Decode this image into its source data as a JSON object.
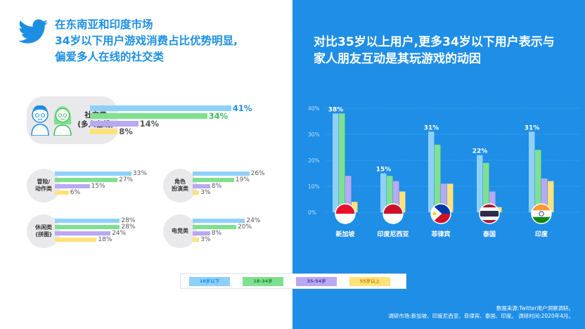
{
  "colors": {
    "age_18_under": "#8fd0f9",
    "age_18_34": "#7fe08f",
    "age_35_54": "#b9a9f2",
    "age_55_up": "#ffe27a",
    "twitter_blue": "#1d8fe3",
    "panel_blue": "#1e8ee6"
  },
  "header": {
    "logo_icon": "twitter-bird-icon",
    "title_line1": "在东南亚和印度市场",
    "title_line2": "34岁以下用户游戏消费占比优势明显,",
    "title_line3": "偏爱多人在线的社交类"
  },
  "right_panel": {
    "title_line1": "对比35岁以上用户,更多34岁以下用户表示与",
    "title_line2": "家人朋友互动是其玩游戏的动因"
  },
  "legend": {
    "items": [
      "18岁以下",
      "18-34岁",
      "35-54岁",
      "55岁以上"
    ]
  },
  "source": {
    "line1": "数据来源:Twitter用户洞察调研。",
    "line2": "调研市场:新加坡、印度尼西亚、菲律宾、泰国、印度。 调研时间:2020年4月。"
  },
  "chart_data": [
    {
      "type": "bar",
      "orientation": "horizontal",
      "category": "社交类(多人在线)",
      "label_line1": "社交类",
      "label_line2": "(多人在线)",
      "series": [
        {
          "name": "18岁以下",
          "value": 41,
          "label": "41%"
        },
        {
          "name": "18-34岁",
          "value": 34,
          "label": "34%"
        },
        {
          "name": "35-54岁",
          "value": 14,
          "label": "14%"
        },
        {
          "name": "55岁以上",
          "value": 8,
          "label": "8%"
        }
      ]
    },
    {
      "type": "bar",
      "orientation": "horizontal",
      "category": "冒险/动作类",
      "label_line1": "冒险/",
      "label_line2": "动作类",
      "series": [
        {
          "name": "18岁以下",
          "value": 33,
          "label": "33%"
        },
        {
          "name": "18-34岁",
          "value": 27,
          "label": "27%"
        },
        {
          "name": "35-54岁",
          "value": 15,
          "label": "15%"
        },
        {
          "name": "55岁以上",
          "value": 6,
          "label": "6%"
        }
      ]
    },
    {
      "type": "bar",
      "orientation": "horizontal",
      "category": "角色扮演类",
      "label_line1": "角色",
      "label_line2": "扮演类",
      "series": [
        {
          "name": "18岁以下",
          "value": 26,
          "label": "26%"
        },
        {
          "name": "18-34岁",
          "value": 19,
          "label": "19%"
        },
        {
          "name": "35-54岁",
          "value": 8,
          "label": "8%"
        },
        {
          "name": "55岁以上",
          "value": 3,
          "label": "3%"
        }
      ]
    },
    {
      "type": "bar",
      "orientation": "horizontal",
      "category": "休闲类(拼图)",
      "label_line1": "休闲类",
      "label_line2": "(拼图)",
      "series": [
        {
          "name": "18岁以下",
          "value": 28,
          "label": "28%"
        },
        {
          "name": "18-34岁",
          "value": 28,
          "label": "28%"
        },
        {
          "name": "35-54岁",
          "value": 24,
          "label": "24%"
        },
        {
          "name": "55岁以上",
          "value": 18,
          "label": "18%"
        }
      ]
    },
    {
      "type": "bar",
      "orientation": "horizontal",
      "category": "电竞类",
      "label_line1": "电竞类",
      "label_line2": "",
      "series": [
        {
          "name": "18岁以下",
          "value": 24,
          "label": "24%"
        },
        {
          "name": "18-34岁",
          "value": 20,
          "label": "20%"
        },
        {
          "name": "35-54岁",
          "value": 8,
          "label": "8%"
        },
        {
          "name": "55岁以上",
          "value": 3,
          "label": "3%"
        }
      ]
    },
    {
      "type": "bar",
      "orientation": "vertical",
      "categories": [
        "新加坡",
        "印度尼西亚",
        "菲律宾",
        "泰国",
        "印度"
      ],
      "flag_icons": [
        "singapore-flag-icon",
        "indonesia-flag-icon",
        "philippines-flag-icon",
        "thailand-flag-icon",
        "india-flag-icon"
      ],
      "y_ticks": [
        "0%",
        "10%",
        "20%",
        "30%",
        "40%"
      ],
      "ylim": [
        0,
        40
      ],
      "top_labels": [
        "38%",
        "15%",
        "31%",
        "22%",
        "31%"
      ],
      "series": [
        {
          "name": "18岁以下",
          "values": [
            38,
            15,
            31,
            22,
            31
          ]
        },
        {
          "name": "18-34岁",
          "values": [
            38,
            14,
            26,
            19,
            24
          ]
        },
        {
          "name": "35-54岁",
          "values": [
            14,
            12,
            11,
            8,
            13
          ]
        },
        {
          "name": "55岁以上",
          "values": [
            4,
            8,
            11,
            2,
            12
          ]
        }
      ]
    }
  ]
}
